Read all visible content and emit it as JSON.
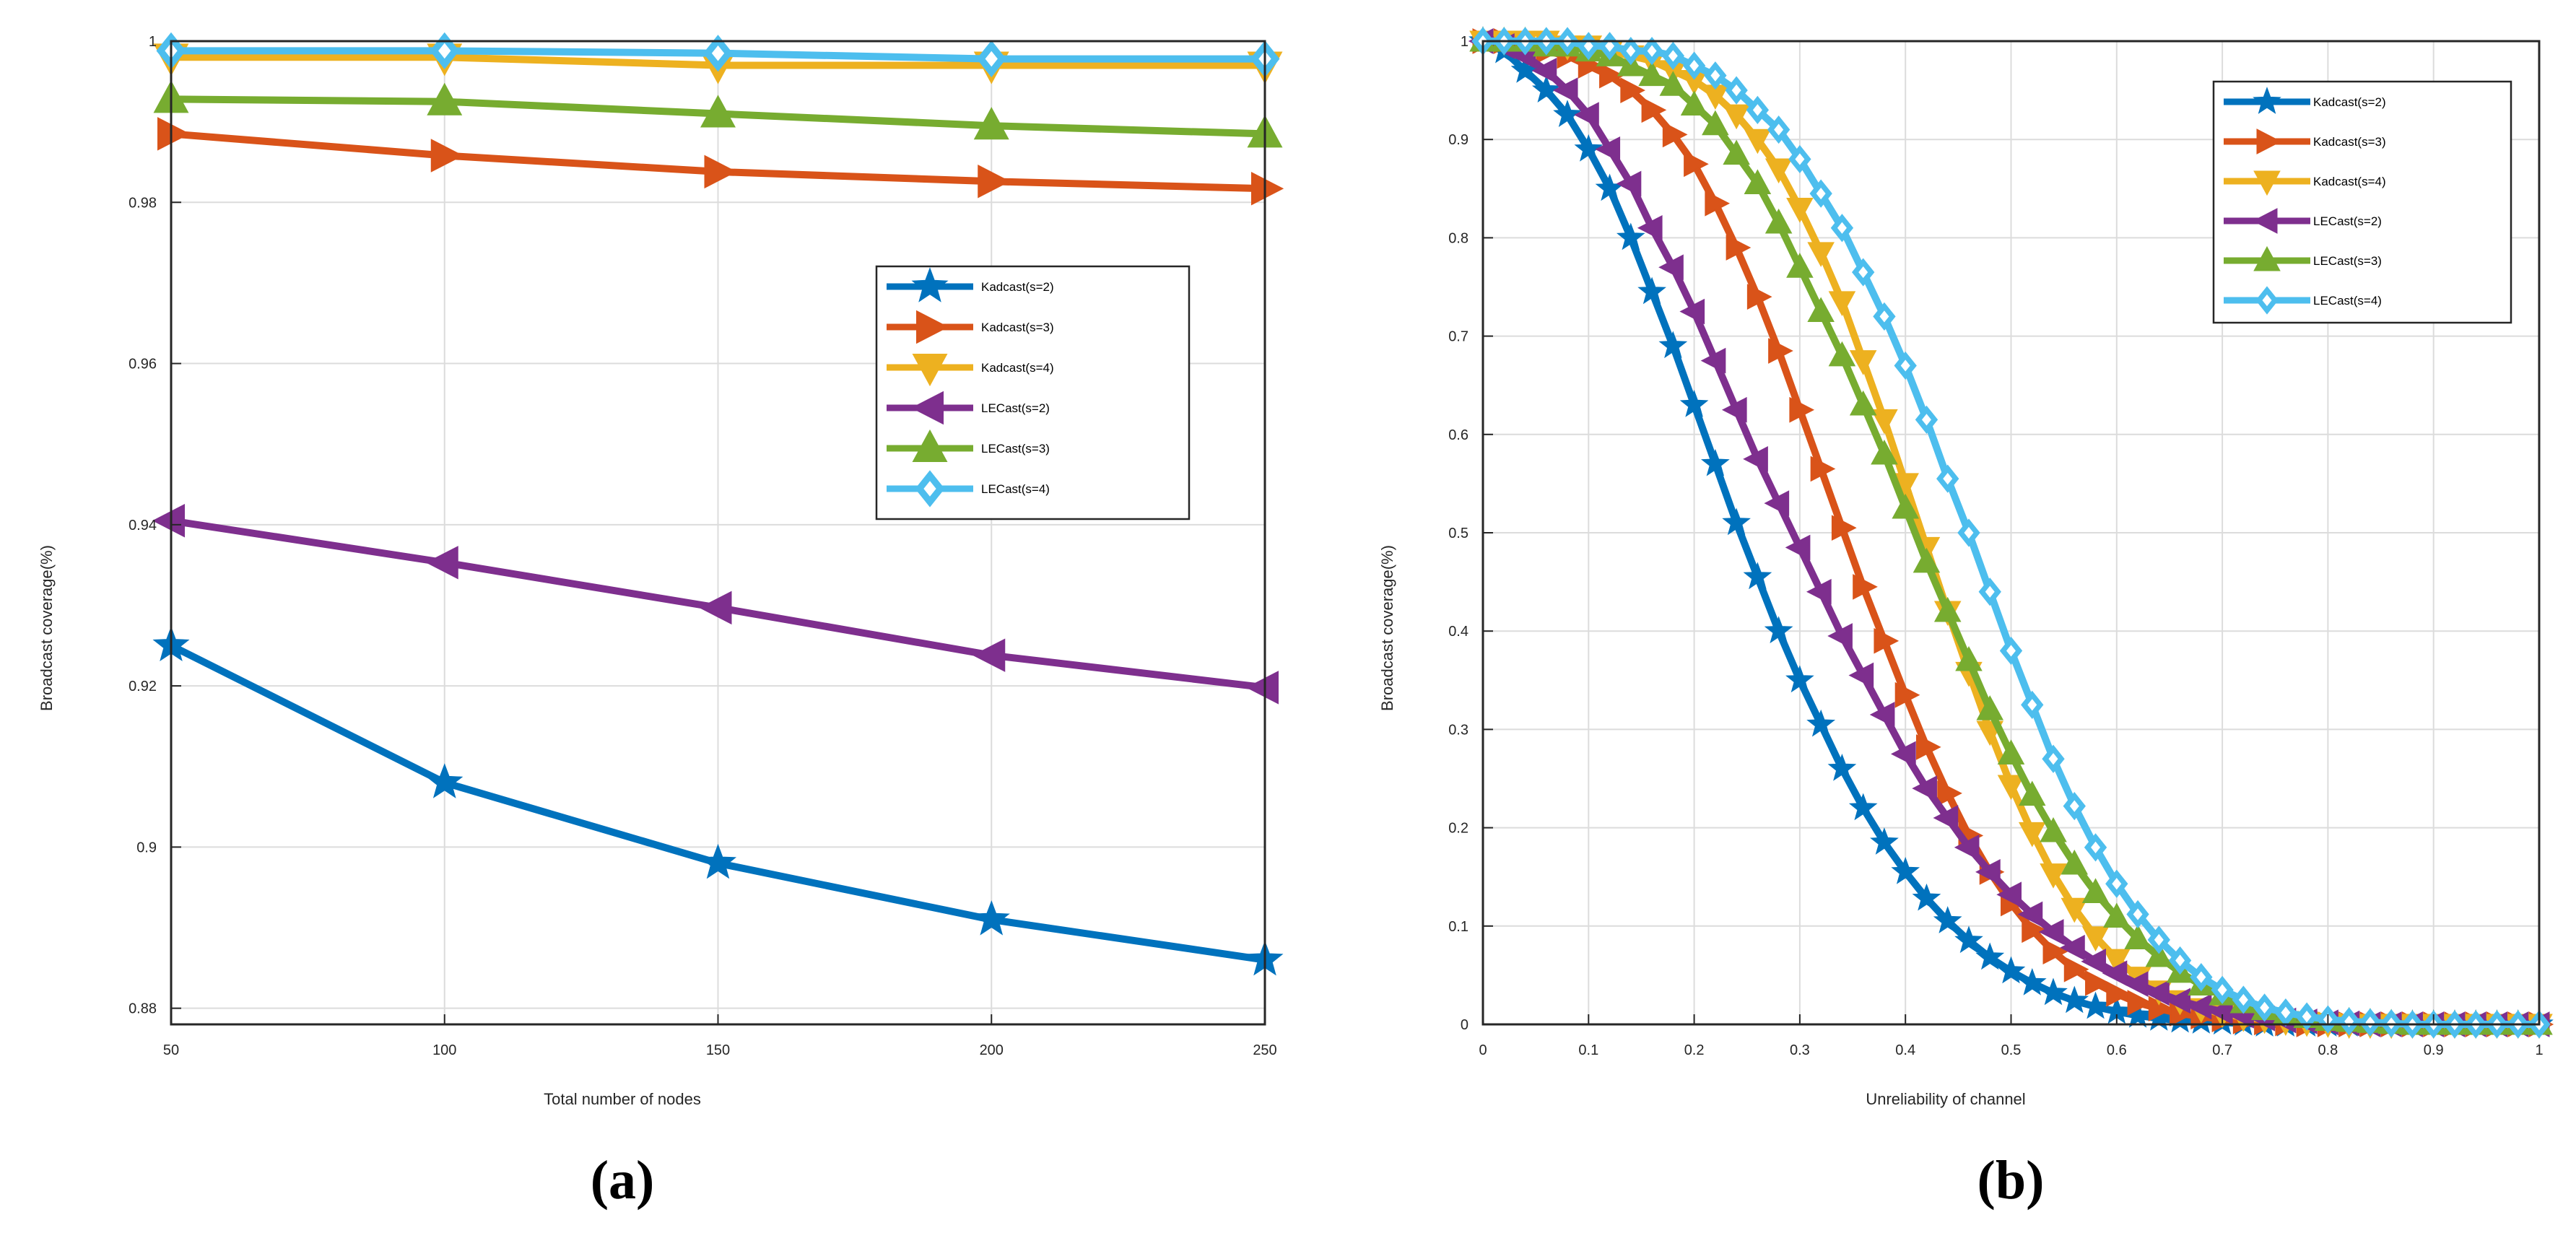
{
  "chart_data": [
    {
      "type": "line",
      "panel_label": "(a)",
      "xlabel": "Total number of nodes",
      "ylabel": "Broadcast coverage(%)",
      "xlim": [
        50,
        250
      ],
      "ylim": [
        0.878,
        1.0
      ],
      "xticks": [
        50,
        100,
        150,
        200,
        250
      ],
      "xtick_labels": [
        "50",
        "100",
        "150",
        "200",
        "250"
      ],
      "yticks": [
        0.88,
        0.9,
        0.92,
        0.94,
        0.96,
        0.98,
        1.0
      ],
      "ytick_labels": [
        "0.88",
        "0.9",
        "0.92",
        "0.94",
        "0.96",
        "0.98",
        "1"
      ],
      "grid": true,
      "legend_position": "center-right",
      "x": [
        50,
        100,
        150,
        200,
        250
      ],
      "series": [
        {
          "name": "Kadcast(s=2)",
          "color": "#0072BD",
          "marker": "star",
          "values": [
            0.925,
            0.908,
            0.898,
            0.891,
            0.886
          ]
        },
        {
          "name": "Kadcast(s=3)",
          "color": "#D95319",
          "marker": "triangle-right",
          "values": [
            0.9885,
            0.9858,
            0.9838,
            0.9826,
            0.9817
          ]
        },
        {
          "name": "Kadcast(s=4)",
          "color": "#EDB120",
          "marker": "triangle-down",
          "values": [
            0.998,
            0.998,
            0.997,
            0.997,
            0.997
          ]
        },
        {
          "name": "LECast(s=2)",
          "color": "#7E2F8E",
          "marker": "triangle-left",
          "values": [
            0.9405,
            0.9353,
            0.9297,
            0.9238,
            0.9198
          ]
        },
        {
          "name": "LECast(s=3)",
          "color": "#77AC30",
          "marker": "triangle-up",
          "values": [
            0.9928,
            0.9925,
            0.991,
            0.9895,
            0.9885
          ]
        },
        {
          "name": "LECast(s=4)",
          "color": "#4DBEEE",
          "marker": "diamond",
          "values": [
            0.9988,
            0.9988,
            0.9985,
            0.9978,
            0.9978
          ]
        }
      ]
    },
    {
      "type": "line",
      "panel_label": "(b)",
      "xlabel": "Unreliability of channel",
      "ylabel": "Broadcast coverage(%)",
      "xlim": [
        0,
        1
      ],
      "ylim": [
        0,
        1
      ],
      "xticks": [
        0,
        0.1,
        0.2,
        0.3,
        0.4,
        0.5,
        0.6,
        0.7,
        0.8,
        0.9,
        1
      ],
      "xtick_labels": [
        "0",
        "0.1",
        "0.2",
        "0.3",
        "0.4",
        "0.5",
        "0.6",
        "0.7",
        "0.8",
        "0.9",
        "1"
      ],
      "yticks": [
        0,
        0.1,
        0.2,
        0.3,
        0.4,
        0.5,
        0.6,
        0.7,
        0.8,
        0.9,
        1
      ],
      "ytick_labels": [
        "0",
        "0.1",
        "0.2",
        "0.3",
        "0.4",
        "0.5",
        "0.6",
        "0.7",
        "0.8",
        "0.9",
        "1"
      ],
      "grid": true,
      "legend_position": "top-right",
      "x": [
        0,
        0.02,
        0.04,
        0.06,
        0.08,
        0.1,
        0.12,
        0.14,
        0.16,
        0.18,
        0.2,
        0.22,
        0.24,
        0.26,
        0.28,
        0.3,
        0.32,
        0.34,
        0.36,
        0.38,
        0.4,
        0.42,
        0.44,
        0.46,
        0.48,
        0.5,
        0.52,
        0.54,
        0.56,
        0.58,
        0.6,
        0.62,
        0.64,
        0.66,
        0.68,
        0.7,
        0.72,
        0.74,
        0.76,
        0.78,
        0.8,
        0.82,
        0.84,
        0.86,
        0.88,
        0.9,
        0.92,
        0.94,
        0.96,
        0.98,
        1
      ],
      "series": [
        {
          "name": "Kadcast(s=2)",
          "color": "#0072BD",
          "marker": "star",
          "values": [
            1,
            0.99,
            0.97,
            0.95,
            0.925,
            0.89,
            0.85,
            0.8,
            0.745,
            0.69,
            0.63,
            0.57,
            0.51,
            0.455,
            0.4,
            0.35,
            0.305,
            0.26,
            0.22,
            0.185,
            0.155,
            0.128,
            0.105,
            0.085,
            0.068,
            0.054,
            0.042,
            0.032,
            0.024,
            0.018,
            0.013,
            0.009,
            0.006,
            0.004,
            0.003,
            0.002,
            0.001,
            0,
            0,
            0,
            0,
            0,
            0,
            0,
            0,
            0,
            0,
            0,
            0,
            0,
            0
          ]
        },
        {
          "name": "Kadcast(s=3)",
          "color": "#D95319",
          "marker": "triangle-right",
          "values": [
            1,
            1,
            0.995,
            0.99,
            0.985,
            0.975,
            0.965,
            0.95,
            0.93,
            0.905,
            0.875,
            0.835,
            0.79,
            0.74,
            0.685,
            0.625,
            0.565,
            0.505,
            0.445,
            0.39,
            0.335,
            0.282,
            0.235,
            0.192,
            0.155,
            0.123,
            0.096,
            0.074,
            0.056,
            0.042,
            0.031,
            0.022,
            0.016,
            0.011,
            0.008,
            0.005,
            0.003,
            0.002,
            0.001,
            0,
            0,
            0,
            0,
            0,
            0,
            0,
            0,
            0,
            0,
            0,
            0
          ]
        },
        {
          "name": "Kadcast(s=4)",
          "color": "#EDB120",
          "marker": "triangle-down",
          "values": [
            1,
            1,
            1,
            1,
            0.995,
            0.995,
            0.99,
            0.985,
            0.98,
            0.97,
            0.96,
            0.945,
            0.925,
            0.9,
            0.87,
            0.83,
            0.785,
            0.735,
            0.675,
            0.615,
            0.55,
            0.485,
            0.42,
            0.358,
            0.298,
            0.243,
            0.195,
            0.153,
            0.118,
            0.089,
            0.066,
            0.048,
            0.034,
            0.024,
            0.016,
            0.011,
            0.007,
            0.005,
            0.003,
            0.002,
            0.001,
            0,
            0,
            0,
            0,
            0,
            0,
            0,
            0,
            0,
            0
          ]
        },
        {
          "name": "LECast(s=2)",
          "color": "#7E2F8E",
          "marker": "triangle-left",
          "values": [
            1,
            0.995,
            0.985,
            0.97,
            0.95,
            0.925,
            0.89,
            0.855,
            0.81,
            0.77,
            0.725,
            0.675,
            0.625,
            0.575,
            0.53,
            0.485,
            0.44,
            0.395,
            0.355,
            0.315,
            0.275,
            0.24,
            0.21,
            0.18,
            0.155,
            0.132,
            0.112,
            0.094,
            0.078,
            0.064,
            0.052,
            0.041,
            0.032,
            0.024,
            0.018,
            0.013,
            0.009,
            0.006,
            0.004,
            0.003,
            0.002,
            0.001,
            0,
            0,
            0,
            0,
            0,
            0,
            0,
            0,
            0
          ]
        },
        {
          "name": "LECast(s=3)",
          "color": "#77AC30",
          "marker": "triangle-up",
          "values": [
            1,
            1,
            1,
            0.995,
            0.995,
            0.99,
            0.985,
            0.975,
            0.965,
            0.955,
            0.935,
            0.915,
            0.885,
            0.855,
            0.815,
            0.77,
            0.725,
            0.68,
            0.63,
            0.58,
            0.525,
            0.47,
            0.42,
            0.37,
            0.32,
            0.275,
            0.233,
            0.196,
            0.163,
            0.134,
            0.109,
            0.087,
            0.069,
            0.053,
            0.04,
            0.03,
            0.022,
            0.015,
            0.01,
            0.007,
            0.004,
            0.003,
            0.002,
            0.001,
            0,
            0,
            0,
            0,
            0,
            0,
            0
          ]
        },
        {
          "name": "LECast(s=4)",
          "color": "#4DBEEE",
          "marker": "diamond",
          "values": [
            1,
            1,
            1,
            1,
            1,
            0.995,
            0.995,
            0.99,
            0.99,
            0.985,
            0.975,
            0.965,
            0.95,
            0.93,
            0.91,
            0.88,
            0.845,
            0.81,
            0.765,
            0.72,
            0.67,
            0.615,
            0.555,
            0.5,
            0.44,
            0.38,
            0.325,
            0.27,
            0.222,
            0.18,
            0.143,
            0.112,
            0.086,
            0.065,
            0.048,
            0.035,
            0.025,
            0.017,
            0.012,
            0.008,
            0.005,
            0.003,
            0.002,
            0.001,
            0,
            0,
            0,
            0,
            0,
            0,
            0
          ]
        }
      ]
    }
  ]
}
